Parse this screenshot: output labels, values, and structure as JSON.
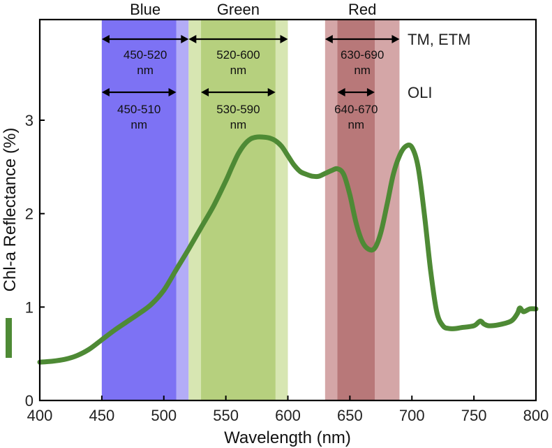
{
  "chart_data": {
    "type": "line",
    "xlabel": "Wavelength (nm)",
    "ylabel": "Chl-a Reflectance (%)",
    "xlim": [
      400,
      800
    ],
    "ylim": [
      0,
      4.0
    ],
    "xticks": [
      400,
      450,
      500,
      550,
      600,
      650,
      700,
      750,
      800
    ],
    "yticks": [
      0,
      1,
      2,
      3
    ],
    "series": [
      {
        "name": "Chl-a Reflectance",
        "color": "#4e8a35",
        "x": [
          400,
          410,
          420,
          430,
          440,
          450,
          460,
          470,
          480,
          490,
          500,
          510,
          520,
          530,
          540,
          550,
          555,
          560,
          565,
          570,
          575,
          580,
          585,
          590,
          595,
          600,
          605,
          610,
          615,
          620,
          625,
          630,
          635,
          640,
          645,
          650,
          655,
          660,
          665,
          670,
          675,
          680,
          685,
          690,
          695,
          700,
          705,
          710,
          715,
          720,
          725,
          730,
          735,
          740,
          750,
          755,
          758,
          762,
          770,
          780,
          785,
          787,
          790,
          795,
          800
        ],
        "y": [
          0.41,
          0.42,
          0.44,
          0.48,
          0.55,
          0.65,
          0.75,
          0.84,
          0.93,
          1.03,
          1.18,
          1.4,
          1.62,
          1.85,
          2.08,
          2.35,
          2.5,
          2.64,
          2.74,
          2.8,
          2.82,
          2.82,
          2.81,
          2.78,
          2.72,
          2.62,
          2.52,
          2.45,
          2.42,
          2.4,
          2.4,
          2.43,
          2.46,
          2.48,
          2.42,
          2.2,
          1.9,
          1.7,
          1.62,
          1.63,
          1.8,
          2.1,
          2.42,
          2.62,
          2.72,
          2.71,
          2.5,
          2.0,
          1.4,
          0.95,
          0.8,
          0.77,
          0.77,
          0.78,
          0.8,
          0.85,
          0.82,
          0.8,
          0.81,
          0.85,
          0.93,
          0.99,
          0.95,
          0.98,
          0.98
        ]
      }
    ],
    "bands": [
      {
        "name": "Blue",
        "color": "#7d72f4",
        "tm_range": [
          450,
          520
        ],
        "oli_range": [
          450,
          510
        ],
        "tm_label": "450-520\nnm",
        "oli_label": "450-510\nnm",
        "light_color": "#b3acf7"
      },
      {
        "name": "Green",
        "color": "#b6d07e",
        "tm_range": [
          520,
          600
        ],
        "oli_range": [
          530,
          590
        ],
        "tm_label": "520-600\nnm",
        "oli_label": "530-590\nnm",
        "light_color": "#d7e6b2"
      },
      {
        "name": "Red",
        "color": "#b6797a",
        "tm_range": [
          630,
          690
        ],
        "oli_range": [
          640,
          670
        ],
        "tm_label": "630-690\nnm",
        "oli_label": "640-670\nnm",
        "light_color": "#d4a6a7",
        "oli_color": "#b87879"
      }
    ],
    "sensors": [
      "TM, ETM",
      "OLI"
    ]
  }
}
